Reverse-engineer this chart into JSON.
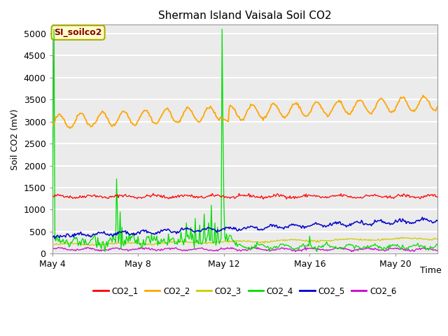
{
  "title": "Sherman Island Vaisala Soil CO2",
  "ylabel": "Soil CO2 (mV)",
  "xlabel": "Time",
  "annotation_text": "SI_soilco2",
  "annotation_color": "#8B0000",
  "annotation_bg": "#FFFFCC",
  "annotation_border": "#AAAA00",
  "ylim": [
    0,
    5200
  ],
  "yticks": [
    0,
    500,
    1000,
    1500,
    2000,
    2500,
    3000,
    3500,
    4000,
    4500,
    5000
  ],
  "bg_color": "#EBEBEB",
  "grid_color": "#FFFFFF",
  "series": {
    "CO2_1": {
      "color": "#FF0000",
      "lw": 0.9
    },
    "CO2_2": {
      "color": "#FFA500",
      "lw": 1.3
    },
    "CO2_3": {
      "color": "#CCCC00",
      "lw": 0.9
    },
    "CO2_4": {
      "color": "#00DD00",
      "lw": 0.9
    },
    "CO2_5": {
      "color": "#0000CC",
      "lw": 1.1
    },
    "CO2_6": {
      "color": "#CC00CC",
      "lw": 0.9
    }
  },
  "xtick_labels": [
    "May 4",
    "May 8",
    "May 12",
    "May 16",
    "May 20"
  ],
  "xtick_positions": [
    0,
    96,
    192,
    288,
    384
  ],
  "total_points": 432
}
